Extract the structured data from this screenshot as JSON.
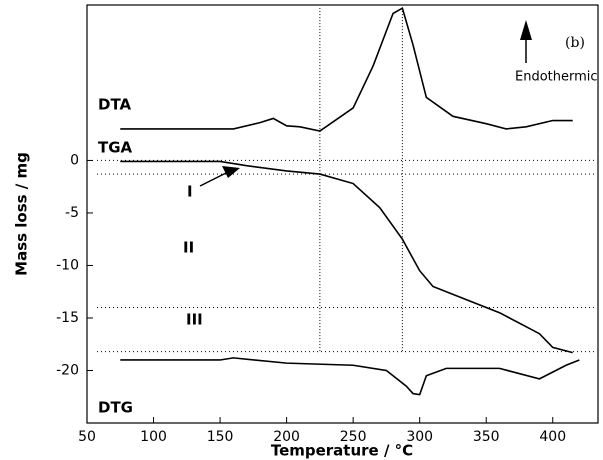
{
  "chart_data": {
    "type": "line",
    "xlabel": "Temperature / °C",
    "ylabel": "Mass loss / mg",
    "panel_label": "(b)",
    "annotations": [
      "DTA",
      "TGA",
      "DTG",
      "I",
      "II",
      "III",
      "Endothermic"
    ],
    "xlim": [
      50,
      434
    ],
    "ylim": [
      -25,
      14.8
    ],
    "xticks": [
      50,
      100,
      150,
      200,
      250,
      300,
      350,
      400
    ],
    "yticks": [
      0,
      -5,
      -10,
      -15,
      -20
    ],
    "grid": false,
    "hlines": [
      0,
      -1.3,
      -14,
      -18.2
    ],
    "vlines": [
      225,
      287
    ],
    "series": [
      {
        "name": "DTA",
        "color": "#000000",
        "x": [
          75,
          160,
          180,
          190,
          200,
          210,
          225,
          250,
          265,
          280,
          287,
          295,
          305,
          325,
          350,
          365,
          380,
          400,
          415
        ],
        "values": [
          3.0,
          3.0,
          3.6,
          4.0,
          3.3,
          3.2,
          2.8,
          5,
          9,
          14,
          14.5,
          11,
          6,
          4.2,
          3.5,
          3.0,
          3.2,
          3.8,
          3.8
        ]
      },
      {
        "name": "TGA",
        "color": "#000000",
        "x": [
          75,
          150,
          170,
          200,
          225,
          250,
          270,
          287,
          300,
          310,
          330,
          360,
          390,
          400,
          415
        ],
        "values": [
          -0.1,
          -0.1,
          -0.5,
          -1.0,
          -1.3,
          -2.2,
          -4.5,
          -7.5,
          -10.5,
          -12,
          -13,
          -14.5,
          -16.5,
          -17.8,
          -18.3
        ]
      },
      {
        "name": "DTG",
        "color": "#000000",
        "x": [
          75,
          150,
          160,
          200,
          250,
          275,
          290,
          295,
          300,
          305,
          320,
          360,
          390,
          410,
          420
        ],
        "values": [
          -19,
          -19,
          -18.8,
          -19.3,
          -19.5,
          -20,
          -21.5,
          -22.2,
          -22.3,
          -20.5,
          -19.8,
          -19.8,
          -20.8,
          -19.5,
          -19
        ]
      }
    ]
  }
}
